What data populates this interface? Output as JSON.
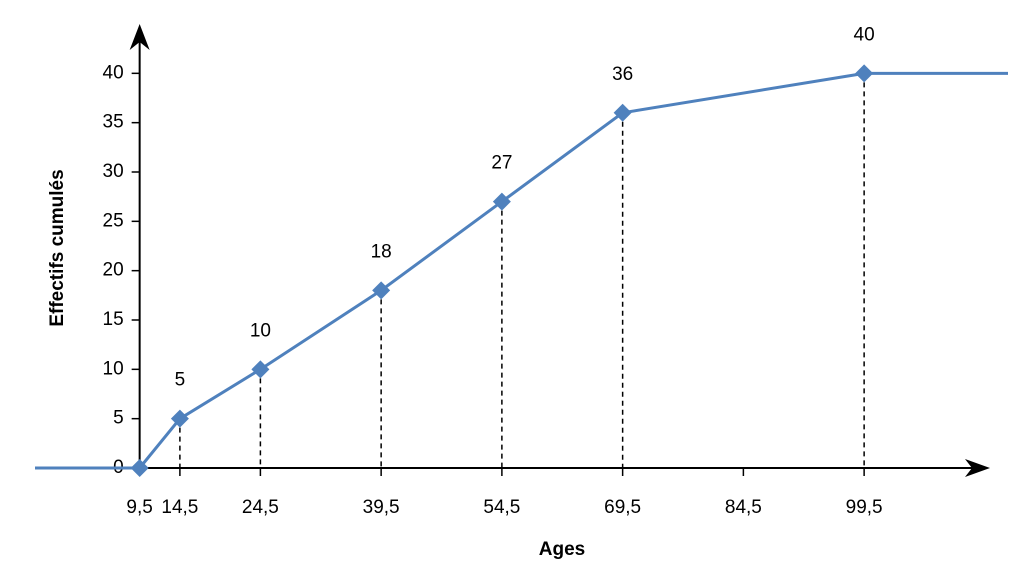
{
  "chart_data": {
    "type": "line",
    "x_label": "Ages",
    "y_label": "Effectifs cumulés",
    "x": [
      9.5,
      14.5,
      24.5,
      39.5,
      54.5,
      69.5,
      99.5
    ],
    "series": [
      {
        "color": "#4f81bd",
        "values": [
          0,
          5,
          10,
          18,
          27,
          36,
          40
        ]
      }
    ],
    "xlim": [
      -3.5,
      117
    ],
    "xticks": [
      {
        "value": 9.5,
        "label": "9,5"
      },
      {
        "value": 14.5,
        "label": "14,5"
      },
      {
        "value": 24.5,
        "label": "24,5"
      },
      {
        "value": 39.5,
        "label": "39,5"
      },
      {
        "value": 54.5,
        "label": "54,5"
      },
      {
        "value": 69.5,
        "label": "69,5"
      },
      {
        "value": 84.5,
        "label": "84,5"
      },
      {
        "value": 99.5,
        "label": "99,5"
      }
    ],
    "ylim": [
      0,
      45
    ],
    "yticks": [
      0,
      5,
      10,
      15,
      20,
      25,
      30,
      35,
      40
    ]
  }
}
